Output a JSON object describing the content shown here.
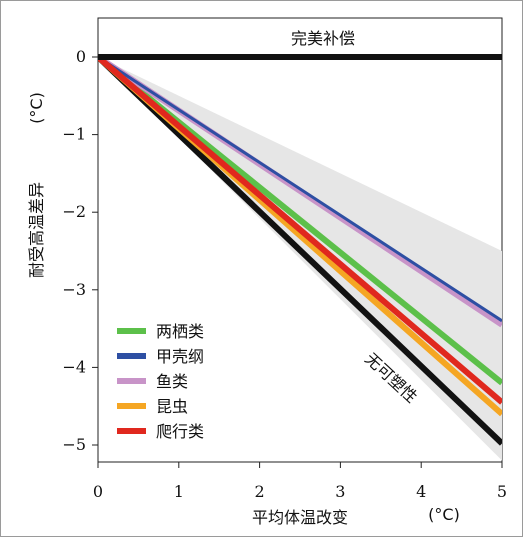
{
  "chart_data": {
    "type": "line",
    "xlabel": "平均体温改变",
    "xunit": "(°C)",
    "ylabel": "耐受高温差异",
    "yunit": "(°C)",
    "xlim": [
      0,
      5
    ],
    "ylim": [
      -5.2,
      0.5
    ],
    "xticks": [
      0,
      1,
      2,
      3,
      4,
      5
    ],
    "yticks": [
      0,
      -1,
      -2,
      -3,
      -4,
      -5
    ],
    "grid": false,
    "legend_position": "bottom-left",
    "annotations": {
      "full_compensation": "完美补偿",
      "no_plasticity": "无可塑性"
    },
    "shaded_band": {
      "x": [
        0,
        5
      ],
      "upper": [
        0,
        -2.5
      ],
      "lower": [
        0,
        -5.2
      ],
      "color": "#e6e6e6"
    },
    "series": [
      {
        "name": "完美补偿",
        "legend": false,
        "x": [
          0,
          5
        ],
        "y": [
          0,
          0
        ],
        "color": "#111111",
        "width": 6
      },
      {
        "name": "无可塑性",
        "legend": false,
        "x": [
          0,
          5
        ],
        "y": [
          0,
          -4.98
        ],
        "color": "#111111",
        "width": 6
      },
      {
        "name": "两栖类",
        "x": [
          0,
          5
        ],
        "y": [
          0,
          -4.2
        ],
        "color": "#5cc04a",
        "width": 6
      },
      {
        "name": "甲壳纲",
        "x": [
          0,
          5
        ],
        "y": [
          0,
          -3.4
        ],
        "color": "#2e4fa3",
        "width": 3
      },
      {
        "name": "鱼类",
        "x": [
          0,
          5
        ],
        "y": [
          0,
          -3.45
        ],
        "color": "#c894c8",
        "width": 6
      },
      {
        "name": "昆虫",
        "x": [
          0,
          5
        ],
        "y": [
          0,
          -4.6
        ],
        "color": "#f5a623",
        "width": 6
      },
      {
        "name": "爬行类",
        "x": [
          0,
          5
        ],
        "y": [
          0,
          -4.45
        ],
        "color": "#e0281e",
        "width": 6
      }
    ]
  }
}
